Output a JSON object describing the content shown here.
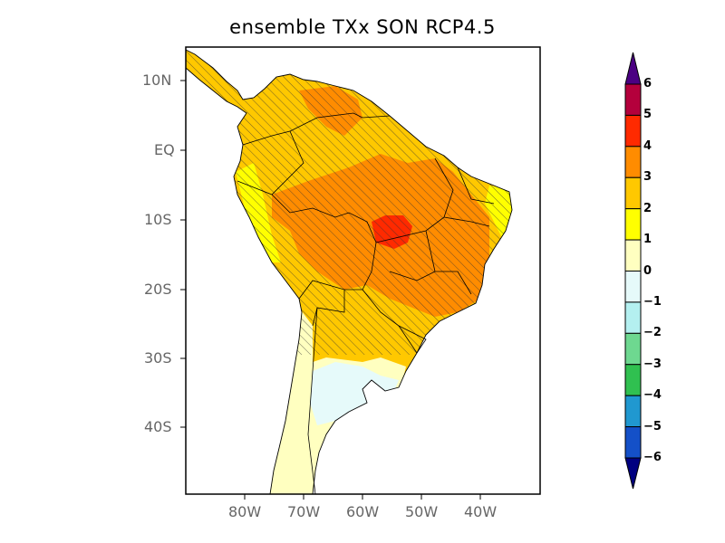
{
  "title": "ensemble TXx SON RCP4.5",
  "map": {
    "lat_ticks": [
      "10N",
      "EQ",
      "10S",
      "20S",
      "30S",
      "40S"
    ],
    "lon_ticks": [
      "80W",
      "70W",
      "60W",
      "50W",
      "40W"
    ],
    "extent": {
      "lon": [
        -90,
        -30
      ],
      "lat": [
        -50,
        15
      ]
    },
    "hatching_note_visible": false
  },
  "colorbar": {
    "labels": [
      "6",
      "5",
      "4",
      "3",
      "2",
      "1",
      "0",
      "−1",
      "−2",
      "−3",
      "−4",
      "−5",
      "−6"
    ],
    "colors": [
      "#4b0082",
      "#b4003c",
      "#ff2a00",
      "#ff8c00",
      "#ffc800",
      "#ffff00",
      "#ffffc0",
      "#e6fafa",
      "#b4f0f0",
      "#6ed890",
      "#30c050",
      "#2098d0",
      "#1450c8",
      "#000080"
    ]
  }
}
